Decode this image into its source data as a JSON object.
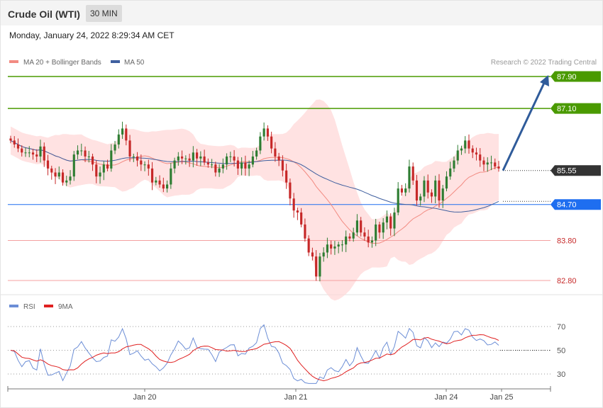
{
  "header": {
    "title": "Crude Oil (WTI)",
    "interval": "30 MIN",
    "datetime": "Monday, January 24, 2022 8:29:34 AM CET"
  },
  "legend": {
    "ma20_bb": "MA 20 + Bollinger Bands",
    "ma50": "MA 50",
    "rsi": "RSI",
    "rsi_ma": "9MA"
  },
  "credit": "Research © 2022 Trading Central",
  "colors": {
    "bullish": "#2e7d32",
    "bearish": "#c62828",
    "bollinger": "#ffd6d6",
    "ma20": "#f28b82",
    "ma50": "#3f5f9f",
    "resistance": "#4a9a00",
    "support": "#1e6ef0",
    "support_weak": "#f4a0a0",
    "arrow": "#2f5b9a",
    "rsi": "#6c8ed6",
    "rsi_ma": "#e02020",
    "price_tag": "#333333"
  },
  "chart_data": [
    {
      "type": "candlestick",
      "title": "Crude Oil (WTI)",
      "timeframe": "30 MIN",
      "x_ticks": [
        "Jan 20",
        "Jan 21",
        "Jan 24",
        "Jan 25"
      ],
      "ylim": [
        82.5,
        88.2
      ],
      "levels": [
        {
          "value": 87.9,
          "label": "87.90",
          "kind": "resistance"
        },
        {
          "value": 87.1,
          "label": "87.10",
          "kind": "resistance"
        },
        {
          "value": 85.55,
          "label": "85.55",
          "kind": "last"
        },
        {
          "value": 84.7,
          "label": "84.70",
          "kind": "pivot"
        },
        {
          "value": 83.8,
          "label": "83.80",
          "kind": "support"
        },
        {
          "value": 82.8,
          "label": "82.80",
          "kind": "support"
        }
      ],
      "projection": {
        "from": 85.55,
        "to": 87.9
      },
      "close": [
        86.3,
        86.2,
        86.1,
        86.0,
        86.0,
        86.0,
        85.95,
        85.9,
        86.15,
        85.8,
        85.6,
        85.5,
        85.4,
        85.5,
        85.25,
        85.3,
        85.4,
        85.95,
        86.05,
        86.05,
        85.9,
        85.9,
        85.7,
        85.4,
        85.5,
        85.7,
        85.6,
        86.05,
        86.2,
        86.45,
        86.6,
        86.3,
        85.9,
        85.9,
        85.8,
        85.7,
        85.7,
        85.6,
        85.25,
        85.3,
        85.2,
        85.1,
        85.2,
        85.6,
        85.8,
        85.9,
        85.85,
        85.85,
        85.8,
        86.0,
        85.85,
        85.9,
        85.75,
        85.7,
        85.7,
        85.5,
        85.6,
        85.7,
        85.9,
        85.9,
        85.8,
        85.6,
        85.75,
        85.6,
        85.7,
        85.9,
        86.05,
        86.4,
        86.6,
        86.4,
        86.1,
        85.9,
        85.8,
        85.55,
        85.25,
        84.85,
        84.55,
        84.5,
        84.2,
        83.85,
        83.5,
        83.4,
        82.9,
        83.4,
        83.5,
        83.7,
        83.6,
        83.65,
        83.7,
        83.7,
        83.9,
        83.85,
        84.0,
        84.3,
        84.0,
        83.9,
        83.75,
        83.8,
        84.2,
        84.0,
        84.25,
        84.4,
        84.1,
        84.5,
        85.1,
        85.0,
        85.1,
        85.65,
        85.3,
        84.8,
        84.9,
        85.3,
        85.0,
        84.9,
        85.3,
        84.8,
        85.1,
        85.4,
        85.6,
        85.8,
        86.05,
        86.1,
        86.3,
        86.1,
        86.0,
        85.95,
        85.8,
        85.7,
        85.75,
        85.75,
        85.65,
        85.6
      ],
      "indicators": [
        "MA 20",
        "Bollinger Bands",
        "MA 50"
      ]
    },
    {
      "type": "line",
      "title": "RSI",
      "series": [
        {
          "name": "RSI"
        },
        {
          "name": "9MA"
        }
      ],
      "ylim": [
        18,
        82
      ],
      "y_ticks": [
        70,
        50,
        30
      ],
      "x_ticks": [
        "Jan 20",
        "Jan 21",
        "Jan 24",
        "Jan 25"
      ],
      "last": 50
    }
  ]
}
